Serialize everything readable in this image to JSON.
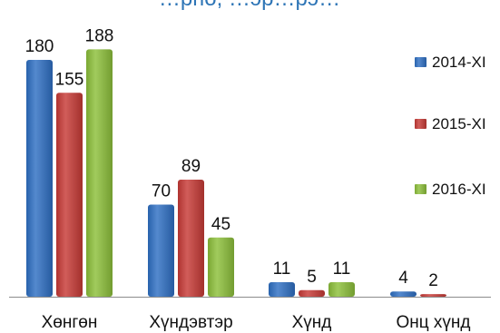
{
  "chart_data": {
    "type": "bar",
    "title": "…рпо, …эр…рэ…",
    "categories": [
      "Хөнгөн",
      "Хүндэвтэр",
      "Хүнд",
      "Онц хүнд"
    ],
    "series": [
      {
        "name": "2014-XI",
        "values": [
          180,
          70,
          11,
          4
        ],
        "color": "#2e6fc3"
      },
      {
        "name": "2015-XI",
        "values": [
          155,
          89,
          5,
          2
        ],
        "color": "#c73a36"
      },
      {
        "name": "2016-XI",
        "values": [
          188,
          45,
          11,
          null
        ],
        "color": "#8cbf3a"
      }
    ],
    "legend_position": "right",
    "ylim": [
      0,
      200
    ],
    "grid": false
  }
}
